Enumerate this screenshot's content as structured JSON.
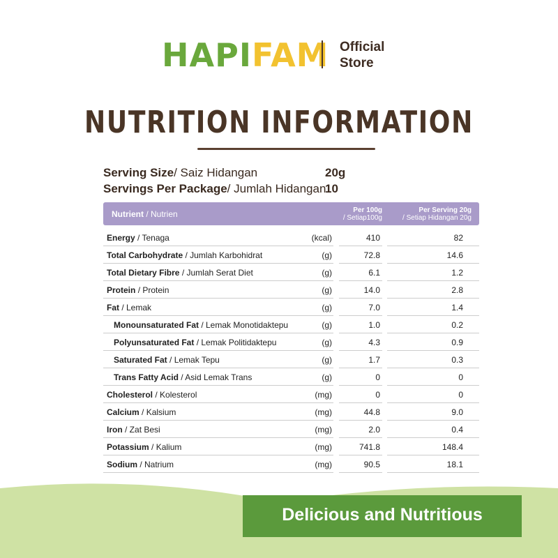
{
  "header": {
    "logo_left": "HAPI",
    "logo_right": "FAM",
    "store_line1": "Official",
    "store_line2": "Store"
  },
  "title": "NUTRITION INFORMATION",
  "serving": [
    {
      "label": "Serving Size",
      "label_ms": "/ Saiz Hidangan",
      "value": "20g"
    },
    {
      "label": "Servings Per Package",
      "label_ms": "/ Jumlah Hidangan",
      "value": "10"
    }
  ],
  "table": {
    "header": {
      "nutrient": "Nutrient",
      "nutrient_ms": "/ Nutrien",
      "col1": "Per 100g",
      "col1_ms": "/ Setiap100g",
      "col2": "Per Serving 20g",
      "col2_ms": "/ Setiap Hidangan 20g"
    },
    "rows": [
      {
        "name": "Energy",
        "name_ms": "/ Tenaga",
        "unit": "(kcal)",
        "per100": "410",
        "per_serving": "82"
      },
      {
        "name": "Total Carbohydrate",
        "name_ms": "/ Jumlah Karbohidrat",
        "unit": "(g)",
        "per100": "72.8",
        "per_serving": "14.6"
      },
      {
        "name": "Total Dietary Fibre",
        "name_ms": "/ Jumlah Serat Diet",
        "unit": "(g)",
        "per100": "6.1",
        "per_serving": "1.2"
      },
      {
        "name": "Protein",
        "name_ms": "/ Protein",
        "unit": "(g)",
        "per100": "14.0",
        "per_serving": "2.8"
      },
      {
        "name": "Fat",
        "name_ms": "/ Lemak",
        "unit": "(g)",
        "per100": "7.0",
        "per_serving": "1.4",
        "children": [
          {
            "name": "Monounsaturated Fat",
            "name_ms": "/ Lemak Monotidaktepu",
            "unit": "(g)",
            "per100": "1.0",
            "per_serving": "0.2"
          },
          {
            "name": "Polyunsaturated Fat",
            "name_ms": "/ Lemak Politidaktepu",
            "unit": "(g)",
            "per100": "4.3",
            "per_serving": "0.9"
          },
          {
            "name": "Saturated Fat",
            "name_ms": "/ Lemak Tepu",
            "unit": "(g)",
            "per100": "1.7",
            "per_serving": "0.3"
          },
          {
            "name": "Trans Fatty Acid",
            "name_ms": "/ Asid Lemak Trans",
            "unit": "(g)",
            "per100": "0",
            "per_serving": "0"
          }
        ]
      },
      {
        "name": "Cholesterol",
        "name_ms": "/ Kolesterol",
        "unit": "(mg)",
        "per100": "0",
        "per_serving": "0"
      },
      {
        "name": "Calcium",
        "name_ms": "/ Kalsium",
        "unit": "(mg)",
        "per100": "44.8",
        "per_serving": "9.0"
      },
      {
        "name": "Iron",
        "name_ms": "/ Zat Besi",
        "unit": "(mg)",
        "per100": "2.0",
        "per_serving": "0.4"
      },
      {
        "name": "Potassium",
        "name_ms": "/ Kalium",
        "unit": "(mg)",
        "per100": "741.8",
        "per_serving": "148.4"
      },
      {
        "name": "Sodium",
        "name_ms": "/ Natrium",
        "unit": "(mg)",
        "per100": "90.5",
        "per_serving": "18.1"
      }
    ]
  },
  "banner": "Delicious and Nutritious"
}
